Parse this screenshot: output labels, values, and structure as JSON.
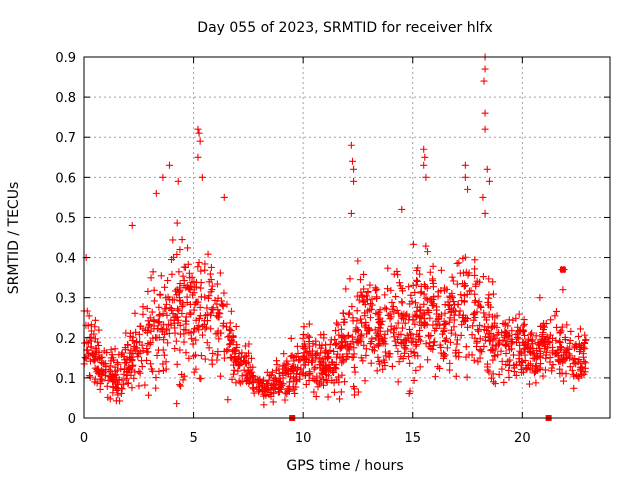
{
  "chart_data": {
    "type": "scatter",
    "title": "Day 055 of 2023, SRMTID for receiver hlfx",
    "xlabel": "GPS time / hours",
    "ylabel": "SRMTID / TECUs",
    "xlim": [
      0,
      24
    ],
    "ylim": [
      0,
      0.9
    ],
    "xticks": [
      "0",
      "5",
      "10",
      "15",
      "20"
    ],
    "yticks": [
      "0",
      "0.1",
      "0.2",
      "0.3",
      "0.4",
      "0.5",
      "0.6",
      "0.7",
      "0.8",
      "0.9"
    ],
    "grid": true,
    "marker": "plus",
    "color": "#ff0000",
    "envelope": {
      "x": [
        0,
        0.5,
        1,
        1.5,
        2,
        2.5,
        3,
        3.5,
        4,
        4.5,
        5,
        5.5,
        6,
        6.5,
        7,
        7.5,
        8,
        8.5,
        9,
        9.5,
        10,
        10.5,
        11,
        11.5,
        12,
        12.5,
        13,
        13.5,
        14,
        14.5,
        15,
        15.5,
        16,
        16.5,
        17,
        17.5,
        18,
        18.5,
        19,
        19.5,
        20,
        20.5,
        21,
        21.5,
        22,
        22.5,
        22.9
      ],
      "median": [
        0.2,
        0.15,
        0.12,
        0.11,
        0.13,
        0.17,
        0.2,
        0.24,
        0.27,
        0.26,
        0.27,
        0.26,
        0.24,
        0.2,
        0.15,
        0.12,
        0.08,
        0.08,
        0.1,
        0.12,
        0.15,
        0.14,
        0.13,
        0.15,
        0.19,
        0.22,
        0.23,
        0.24,
        0.23,
        0.22,
        0.25,
        0.24,
        0.24,
        0.23,
        0.25,
        0.27,
        0.24,
        0.22,
        0.19,
        0.17,
        0.17,
        0.17,
        0.17,
        0.17,
        0.16,
        0.15,
        0.15
      ],
      "spread": [
        0.1,
        0.07,
        0.05,
        0.05,
        0.06,
        0.09,
        0.12,
        0.15,
        0.16,
        0.15,
        0.14,
        0.13,
        0.12,
        0.1,
        0.07,
        0.05,
        0.04,
        0.04,
        0.05,
        0.06,
        0.07,
        0.07,
        0.06,
        0.08,
        0.11,
        0.12,
        0.12,
        0.12,
        0.12,
        0.11,
        0.13,
        0.13,
        0.12,
        0.12,
        0.14,
        0.15,
        0.13,
        0.1,
        0.08,
        0.07,
        0.07,
        0.07,
        0.07,
        0.07,
        0.07,
        0.06,
        0.06
      ]
    },
    "outliers": [
      {
        "x": 0.1,
        "y": 0.4
      },
      {
        "x": 2.2,
        "y": 0.48
      },
      {
        "x": 3.3,
        "y": 0.56
      },
      {
        "x": 3.6,
        "y": 0.6
      },
      {
        "x": 3.9,
        "y": 0.63
      },
      {
        "x": 4.3,
        "y": 0.59
      },
      {
        "x": 5.2,
        "y": 0.72
      },
      {
        "x": 5.25,
        "y": 0.71
      },
      {
        "x": 5.3,
        "y": 0.69
      },
      {
        "x": 5.2,
        "y": 0.65
      },
      {
        "x": 5.4,
        "y": 0.6
      },
      {
        "x": 6.4,
        "y": 0.55
      },
      {
        "x": 12.2,
        "y": 0.68
      },
      {
        "x": 12.25,
        "y": 0.64
      },
      {
        "x": 12.3,
        "y": 0.62
      },
      {
        "x": 12.3,
        "y": 0.59
      },
      {
        "x": 12.2,
        "y": 0.51
      },
      {
        "x": 15.5,
        "y": 0.67
      },
      {
        "x": 15.55,
        "y": 0.65
      },
      {
        "x": 15.5,
        "y": 0.63
      },
      {
        "x": 15.6,
        "y": 0.6
      },
      {
        "x": 14.5,
        "y": 0.52
      },
      {
        "x": 17.4,
        "y": 0.63
      },
      {
        "x": 17.4,
        "y": 0.6
      },
      {
        "x": 17.5,
        "y": 0.57
      },
      {
        "x": 18.3,
        "y": 0.9
      },
      {
        "x": 18.3,
        "y": 0.87
      },
      {
        "x": 18.25,
        "y": 0.84
      },
      {
        "x": 18.3,
        "y": 0.76
      },
      {
        "x": 18.3,
        "y": 0.72
      },
      {
        "x": 18.4,
        "y": 0.62
      },
      {
        "x": 18.5,
        "y": 0.59
      },
      {
        "x": 18.2,
        "y": 0.55
      },
      {
        "x": 18.3,
        "y": 0.51
      },
      {
        "x": 21.8,
        "y": 0.37
      },
      {
        "x": 21.9,
        "y": 0.37
      },
      {
        "x": 21.85,
        "y": 0.32
      },
      {
        "x": 20.8,
        "y": 0.3
      }
    ],
    "square_points": [
      {
        "x": 9.5,
        "y": 0.0
      },
      {
        "x": 21.2,
        "y": 0.0
      },
      {
        "x": 21.85,
        "y": 0.37
      }
    ]
  }
}
